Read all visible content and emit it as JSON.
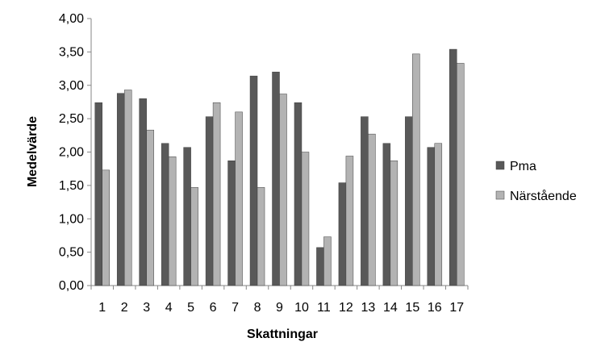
{
  "chart_data": {
    "type": "bar",
    "title": "",
    "xlabel": "Skattningar",
    "ylabel": "Medelvärde",
    "categories": [
      "1",
      "2",
      "3",
      "4",
      "5",
      "6",
      "7",
      "8",
      "9",
      "10",
      "11",
      "12",
      "13",
      "14",
      "15",
      "16",
      "17"
    ],
    "series": [
      {
        "name": "Pma",
        "color": "#595959",
        "values": [
          2.74,
          2.88,
          2.8,
          2.13,
          2.07,
          2.53,
          1.87,
          3.14,
          3.2,
          2.74,
          0.57,
          1.54,
          2.53,
          2.13,
          2.53,
          2.07,
          3.54
        ]
      },
      {
        "name": "Närstående",
        "color": "#b3b3b3",
        "values": [
          1.73,
          2.93,
          2.33,
          1.93,
          1.47,
          2.74,
          2.6,
          1.47,
          2.87,
          2.0,
          0.73,
          1.94,
          2.27,
          1.87,
          3.47,
          2.13,
          3.33
        ]
      }
    ],
    "ylim": [
      0,
      4
    ],
    "yticks": [
      "0,00",
      "0,50",
      "1,00",
      "1,50",
      "2,00",
      "2,50",
      "3,00",
      "3,50",
      "4,00"
    ],
    "grid": false,
    "legend_position": "right"
  }
}
